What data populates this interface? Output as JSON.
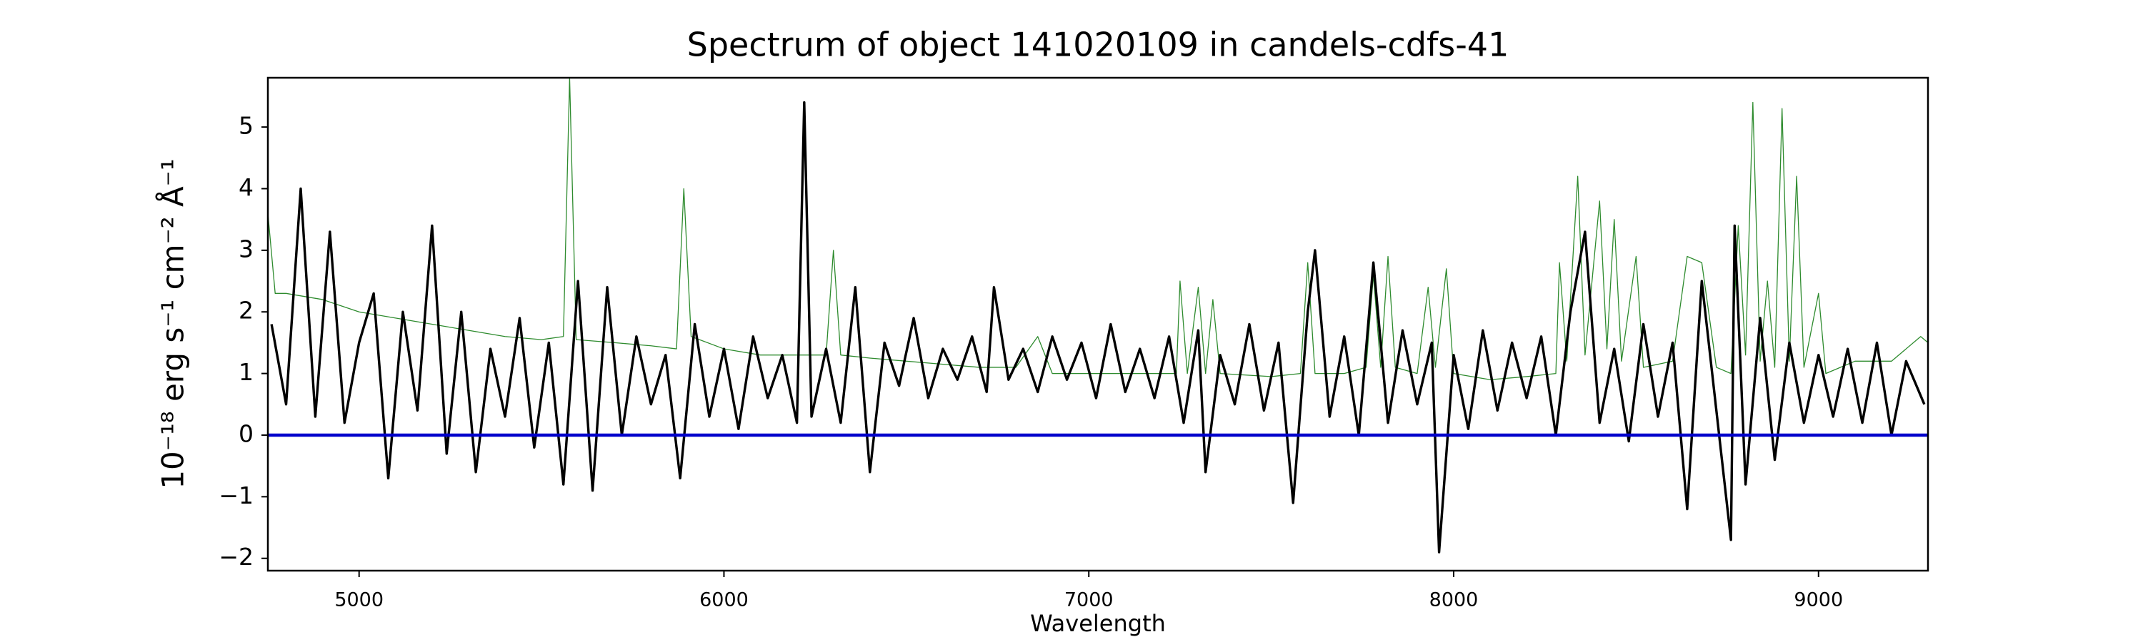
{
  "chart_data": {
    "type": "line",
    "title": "Spectrum of object 141020109 in candels-cdfs-41",
    "x_label": "Wavelength",
    "y_label": "10⁻¹⁸ erg s⁻¹ cm⁻² Å⁻¹",
    "xlim": [
      4750,
      9300
    ],
    "ylim": [
      -2.2,
      5.8
    ],
    "xticks": [
      5000,
      6000,
      7000,
      8000,
      9000
    ],
    "yticks": [
      {
        "value": -2,
        "label": "−2"
      },
      {
        "value": -1,
        "label": "−1"
      },
      0,
      1,
      2,
      3,
      4,
      5
    ],
    "grid": false,
    "series": [
      {
        "color": "#2e8b2e",
        "x": [
          4750,
          4770,
          4800,
          4900,
          5000,
          5100,
          5200,
          5300,
          5400,
          5500,
          5560,
          5577,
          5595,
          5700,
          5800,
          5870,
          5890,
          5910,
          6000,
          6100,
          6200,
          6280,
          6300,
          6320,
          6400,
          6500,
          6600,
          6700,
          6800,
          6860,
          6900,
          7000,
          7100,
          7240,
          7250,
          7270,
          7300,
          7320,
          7340,
          7360,
          7500,
          7580,
          7600,
          7620,
          7700,
          7760,
          7780,
          7800,
          7820,
          7840,
          7900,
          7930,
          7950,
          7980,
          8000,
          8100,
          8200,
          8280,
          8290,
          8310,
          8340,
          8360,
          8400,
          8420,
          8440,
          8460,
          8500,
          8520,
          8600,
          8640,
          8680,
          8720,
          8760,
          8780,
          8800,
          8820,
          8840,
          8860,
          8880,
          8900,
          8920,
          8940,
          8960,
          9000,
          9020,
          9100,
          9200,
          9280,
          9300
        ],
        "values": [
          3.6,
          2.3,
          2.3,
          2.2,
          2.0,
          1.9,
          1.8,
          1.7,
          1.6,
          1.55,
          1.6,
          5.8,
          1.55,
          1.5,
          1.45,
          1.4,
          4.0,
          1.6,
          1.4,
          1.3,
          1.3,
          1.3,
          3.0,
          1.3,
          1.25,
          1.2,
          1.15,
          1.1,
          1.1,
          1.6,
          1.0,
          1.0,
          1.0,
          1.0,
          2.5,
          1.0,
          2.4,
          1.0,
          2.2,
          1.0,
          0.95,
          1.0,
          2.8,
          1.0,
          1.0,
          1.1,
          2.6,
          1.1,
          2.9,
          1.1,
          1.0,
          2.4,
          1.1,
          2.7,
          1.0,
          0.9,
          0.95,
          1.0,
          2.8,
          1.2,
          4.2,
          1.3,
          3.8,
          1.4,
          3.5,
          1.2,
          2.9,
          1.1,
          1.2,
          2.9,
          2.8,
          1.1,
          1.0,
          3.4,
          1.3,
          5.4,
          1.2,
          2.5,
          1.1,
          5.3,
          1.2,
          4.2,
          1.1,
          2.3,
          1.0,
          1.2,
          1.2,
          1.6,
          1.5
        ]
      },
      {
        "color": "#000000",
        "x": [
          4760,
          4800,
          4840,
          4880,
          4920,
          4960,
          5000,
          5040,
          5080,
          5120,
          5160,
          5200,
          5240,
          5280,
          5320,
          5360,
          5400,
          5440,
          5480,
          5520,
          5560,
          5600,
          5640,
          5680,
          5720,
          5760,
          5800,
          5840,
          5880,
          5920,
          5960,
          6000,
          6040,
          6080,
          6120,
          6160,
          6200,
          6220,
          6240,
          6280,
          6320,
          6360,
          6400,
          6440,
          6480,
          6520,
          6560,
          6600,
          6640,
          6680,
          6720,
          6740,
          6780,
          6820,
          6860,
          6900,
          6940,
          6980,
          7020,
          7060,
          7100,
          7140,
          7180,
          7220,
          7260,
          7300,
          7320,
          7360,
          7400,
          7440,
          7480,
          7520,
          7560,
          7600,
          7620,
          7660,
          7700,
          7740,
          7780,
          7820,
          7860,
          7900,
          7940,
          7960,
          8000,
          8040,
          8080,
          8120,
          8160,
          8200,
          8240,
          8280,
          8320,
          8360,
          8400,
          8440,
          8480,
          8520,
          8560,
          8600,
          8640,
          8680,
          8720,
          8760,
          8770,
          8800,
          8840,
          8880,
          8920,
          8960,
          9000,
          9040,
          9080,
          9120,
          9160,
          9200,
          9240,
          9290
        ],
        "values": [
          1.8,
          0.5,
          4.0,
          0.3,
          3.3,
          0.2,
          1.5,
          2.3,
          -0.7,
          2.0,
          0.4,
          3.4,
          -0.3,
          2.0,
          -0.6,
          1.4,
          0.3,
          1.9,
          -0.2,
          1.5,
          -0.8,
          2.5,
          -0.9,
          2.4,
          0.0,
          1.6,
          0.5,
          1.3,
          -0.7,
          1.8,
          0.3,
          1.4,
          0.1,
          1.6,
          0.6,
          1.3,
          0.2,
          5.4,
          0.3,
          1.4,
          0.2,
          2.4,
          -0.6,
          1.5,
          0.8,
          1.9,
          0.6,
          1.4,
          0.9,
          1.6,
          0.7,
          2.4,
          0.9,
          1.4,
          0.7,
          1.6,
          0.9,
          1.5,
          0.6,
          1.8,
          0.7,
          1.4,
          0.6,
          1.6,
          0.2,
          1.7,
          -0.6,
          1.3,
          0.5,
          1.8,
          0.4,
          1.5,
          -1.1,
          2.0,
          3.0,
          0.3,
          1.6,
          0.0,
          2.8,
          0.2,
          1.7,
          0.5,
          1.5,
          -1.9,
          1.3,
          0.1,
          1.7,
          0.4,
          1.5,
          0.6,
          1.6,
          0.0,
          2.0,
          3.3,
          0.2,
          1.4,
          -0.1,
          1.8,
          0.3,
          1.5,
          -1.2,
          2.5,
          0.4,
          -1.7,
          3.4,
          -0.8,
          1.9,
          -0.4,
          1.5,
          0.2,
          1.3,
          0.3,
          1.4,
          0.2,
          1.5,
          0.0,
          1.2,
          0.5
        ]
      },
      {
        "color": "#0000cc",
        "x": [
          4750,
          9300
        ],
        "values": [
          0,
          0
        ]
      }
    ]
  }
}
